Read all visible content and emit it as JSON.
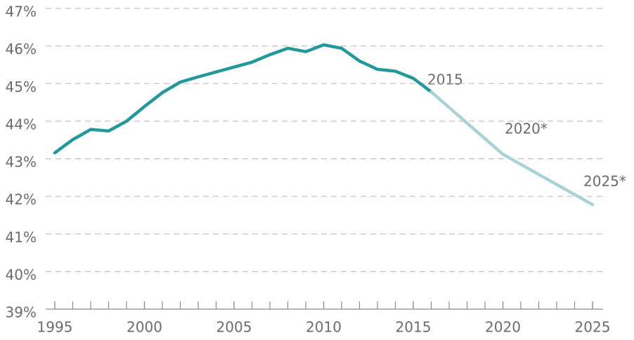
{
  "chart_data": {
    "type": "line",
    "xlim": [
      1995,
      2025
    ],
    "xticks": [
      1995,
      2000,
      2005,
      2010,
      2015,
      2020,
      2025
    ],
    "xminor_step": 1,
    "ylim": [
      39,
      47
    ],
    "yticks": [
      {
        "value": 39,
        "label": "39%"
      },
      {
        "value": 40,
        "label": "40%"
      },
      {
        "value": 41,
        "label": "41%"
      },
      {
        "value": 42,
        "label": "42%"
      },
      {
        "value": 43,
        "label": "43%"
      },
      {
        "value": 44,
        "label": "44%"
      },
      {
        "value": 45,
        "label": "45%"
      },
      {
        "value": 46,
        "label": "46%"
      },
      {
        "value": 47,
        "label": "47%"
      }
    ],
    "grid": true,
    "series": [
      {
        "color": "#22989a",
        "x": [
          1995,
          1996,
          1997,
          1998,
          1999,
          2000,
          2001,
          2002,
          2003,
          2004,
          2005,
          2006,
          2007,
          2008,
          2009,
          2010,
          2011,
          2012,
          2013,
          2014,
          2015,
          2016
        ],
        "values": [
          43.16,
          43.51,
          43.78,
          43.74,
          44.0,
          44.39,
          44.76,
          45.04,
          45.18,
          45.31,
          45.44,
          45.57,
          45.77,
          45.94,
          45.85,
          46.03,
          45.94,
          45.6,
          45.38,
          45.33,
          45.14,
          44.78
        ]
      },
      {
        "color": "#a9d2d6",
        "x": [
          2016,
          2020,
          2025
        ],
        "values": [
          44.78,
          43.12,
          41.78
        ]
      }
    ],
    "annotations": [
      "2015",
      "2020*",
      "2025*"
    ]
  }
}
